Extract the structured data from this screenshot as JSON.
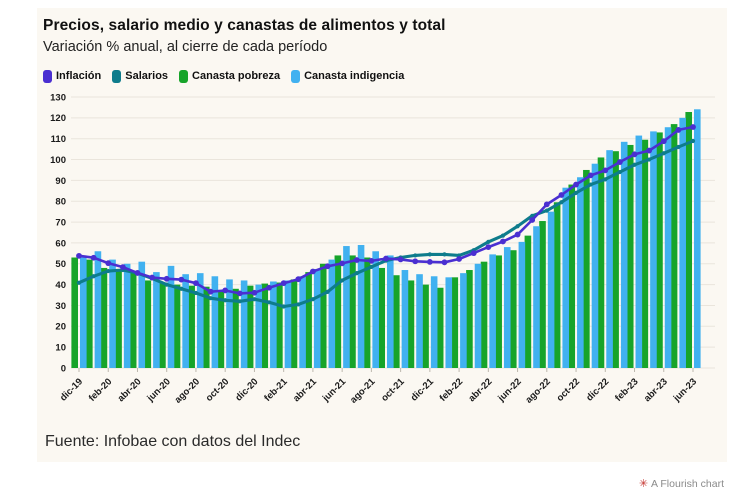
{
  "header": {
    "title": "Precios, salario medio y canastas de alimentos y total",
    "subtitle": "Variación % anual, al cierre de cada período"
  },
  "legend": {
    "items": [
      {
        "key": "inflacion",
        "label": "Inflación",
        "color": "#4A2FD1"
      },
      {
        "key": "salarios",
        "label": "Salarios",
        "color": "#0E7C8C"
      },
      {
        "key": "canasta-pobreza",
        "label": "Canasta pobreza",
        "color": "#17A42A"
      },
      {
        "key": "canasta-indigencia",
        "label": "Canasta indigencia",
        "color": "#41B1F0"
      }
    ]
  },
  "chart_data": {
    "type": "bar",
    "title": "Precios, salario medio y canastas de alimentos y total",
    "subtitle": "Variación % anual, al cierre de cada período",
    "xlabel": "",
    "ylabel": "",
    "ylim": [
      0,
      130
    ],
    "y_tick_step": 10,
    "grid": true,
    "legend_position": "top",
    "x_tick_every": 2,
    "categories": [
      "dic-19",
      "ene-20",
      "feb-20",
      "mar-20",
      "abr-20",
      "may-20",
      "jun-20",
      "jul-20",
      "ago-20",
      "sep-20",
      "oct-20",
      "nov-20",
      "dic-20",
      "ene-21",
      "feb-21",
      "mar-21",
      "abr-21",
      "may-21",
      "jun-21",
      "jul-21",
      "ago-21",
      "sep-21",
      "oct-21",
      "nov-21",
      "dic-21",
      "ene-22",
      "feb-22",
      "mar-22",
      "abr-22",
      "may-22",
      "jun-22",
      "jul-22",
      "ago-22",
      "sep-22",
      "oct-22",
      "nov-22",
      "dic-22",
      "ene-23",
      "feb-23",
      "mar-23",
      "abr-23",
      "may-23",
      "jun-23"
    ],
    "series": [
      {
        "name": "Canasta pobreza",
        "type": "bar",
        "color": "#17A42A",
        "values": [
          53,
          52,
          48,
          46.5,
          46.5,
          42,
          41,
          40,
          39.5,
          39,
          37,
          38,
          39.5,
          40.5,
          41,
          42.5,
          46,
          50,
          54,
          54,
          53,
          48,
          44.5,
          42,
          40,
          38.5,
          43.5,
          47,
          51,
          54,
          56.5,
          63.5,
          70.5,
          79.5,
          88,
          95,
          101,
          104,
          107,
          109.5,
          113,
          117,
          122.8
        ]
      },
      {
        "name": "Canasta indigencia",
        "type": "bar",
        "color": "#41B1F0",
        "values": [
          54,
          56,
          52,
          50,
          51,
          46,
          49,
          45,
          45.5,
          44,
          42.5,
          42,
          40,
          41.5,
          42,
          44,
          47.5,
          52,
          58.5,
          59,
          56,
          54,
          47,
          45,
          44,
          43.5,
          45.5,
          50,
          54.5,
          58,
          60.5,
          68,
          75,
          86.5,
          91.5,
          98,
          104.5,
          108.5,
          111.5,
          113.5,
          115.5,
          120,
          124.1
        ]
      },
      {
        "name": "Salarios",
        "type": "line",
        "color": "#0E7C8C",
        "values": [
          40.9,
          44,
          46.5,
          47,
          45.5,
          43,
          40,
          38,
          36,
          33.5,
          32.5,
          32,
          33,
          31.5,
          29.5,
          30.5,
          33,
          36.5,
          42,
          45.5,
          48.5,
          51.5,
          53,
          54,
          54.5,
          54.5,
          54,
          56.5,
          60.5,
          63.5,
          68,
          73,
          75.5,
          79.5,
          84,
          88,
          90.5,
          94,
          97.5,
          100,
          103,
          106,
          108.9
        ]
      },
      {
        "name": "Inflación",
        "type": "line",
        "color": "#4A2FD1",
        "values": [
          53.8,
          52.9,
          50.3,
          48.4,
          45.6,
          43.4,
          42.8,
          42.4,
          40.7,
          36.6,
          37.2,
          35.8,
          36.1,
          38.5,
          40.7,
          42.6,
          46.3,
          48.8,
          50.2,
          51.8,
          51.4,
          52.5,
          52.1,
          51.2,
          50.9,
          50.7,
          52.3,
          55.1,
          58,
          60.7,
          64,
          71,
          78.5,
          83,
          88,
          92.4,
          94.8,
          98.8,
          102.5,
          104.3,
          108.8,
          114.2,
          115.6
        ]
      }
    ],
    "colors": {
      "grid": "#EAE5DC",
      "axis_text": "#1b1b1b",
      "panel_bg": "#FBF8F2",
      "tick": "#bdb8ae"
    }
  },
  "footer": {
    "source": "Fuente: Infobae con datos del Indec"
  },
  "attribution": {
    "icon": "✳",
    "label": "A Flourish chart",
    "icon_color": "#C5342F"
  }
}
